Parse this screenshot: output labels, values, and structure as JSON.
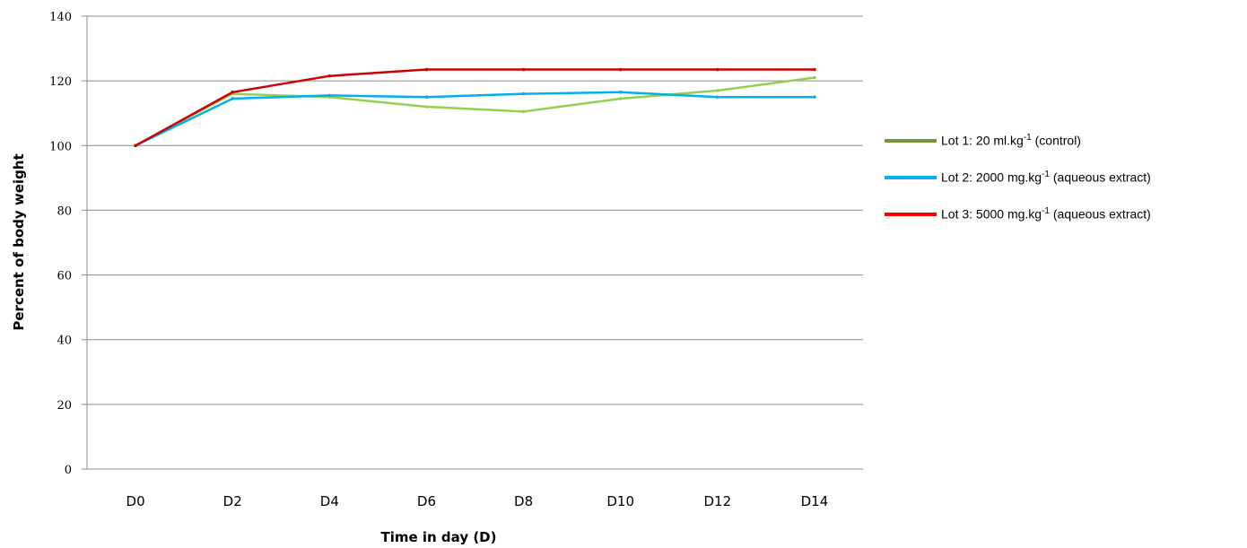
{
  "chart_data": {
    "type": "line",
    "title": "",
    "xlabel": "Time in day (D)",
    "ylabel": "Percent of body weight",
    "categories": [
      "D0",
      "D2",
      "D4",
      "D6",
      "D8",
      "D10",
      "D12",
      "D14"
    ],
    "ylim": [
      0,
      140
    ],
    "yticks": [
      "0",
      "20",
      "40",
      "60",
      "80",
      "100",
      "120",
      "140"
    ],
    "grid": true,
    "legend_position": "right",
    "series": [
      {
        "name_prefix": "Lot 1: 20 ml.kg",
        "name_sup": "-1",
        "name_suffix": " (control)",
        "color": "#92d050",
        "legend_color": "#77933c",
        "values": [
          100,
          116,
          115,
          112,
          110.5,
          114.5,
          117,
          121
        ]
      },
      {
        "name_prefix": "Lot 2: 2000 mg.kg",
        "name_sup": "-1",
        "name_suffix": " (aqueous extract)",
        "color": "#00b0f0",
        "legend_color": "#00b0f0",
        "values": [
          100,
          114.5,
          115.5,
          115,
          116,
          116.5,
          115,
          115
        ]
      },
      {
        "name_prefix": "Lot 3: 5000 mg.kg",
        "name_sup": "-1",
        "name_suffix": " (aqueous extract)",
        "color": "#cc0000",
        "legend_color": "#ff0000",
        "values": [
          100,
          116.5,
          121.5,
          123.5,
          123.5,
          123.5,
          123.5,
          123.5
        ]
      }
    ]
  }
}
